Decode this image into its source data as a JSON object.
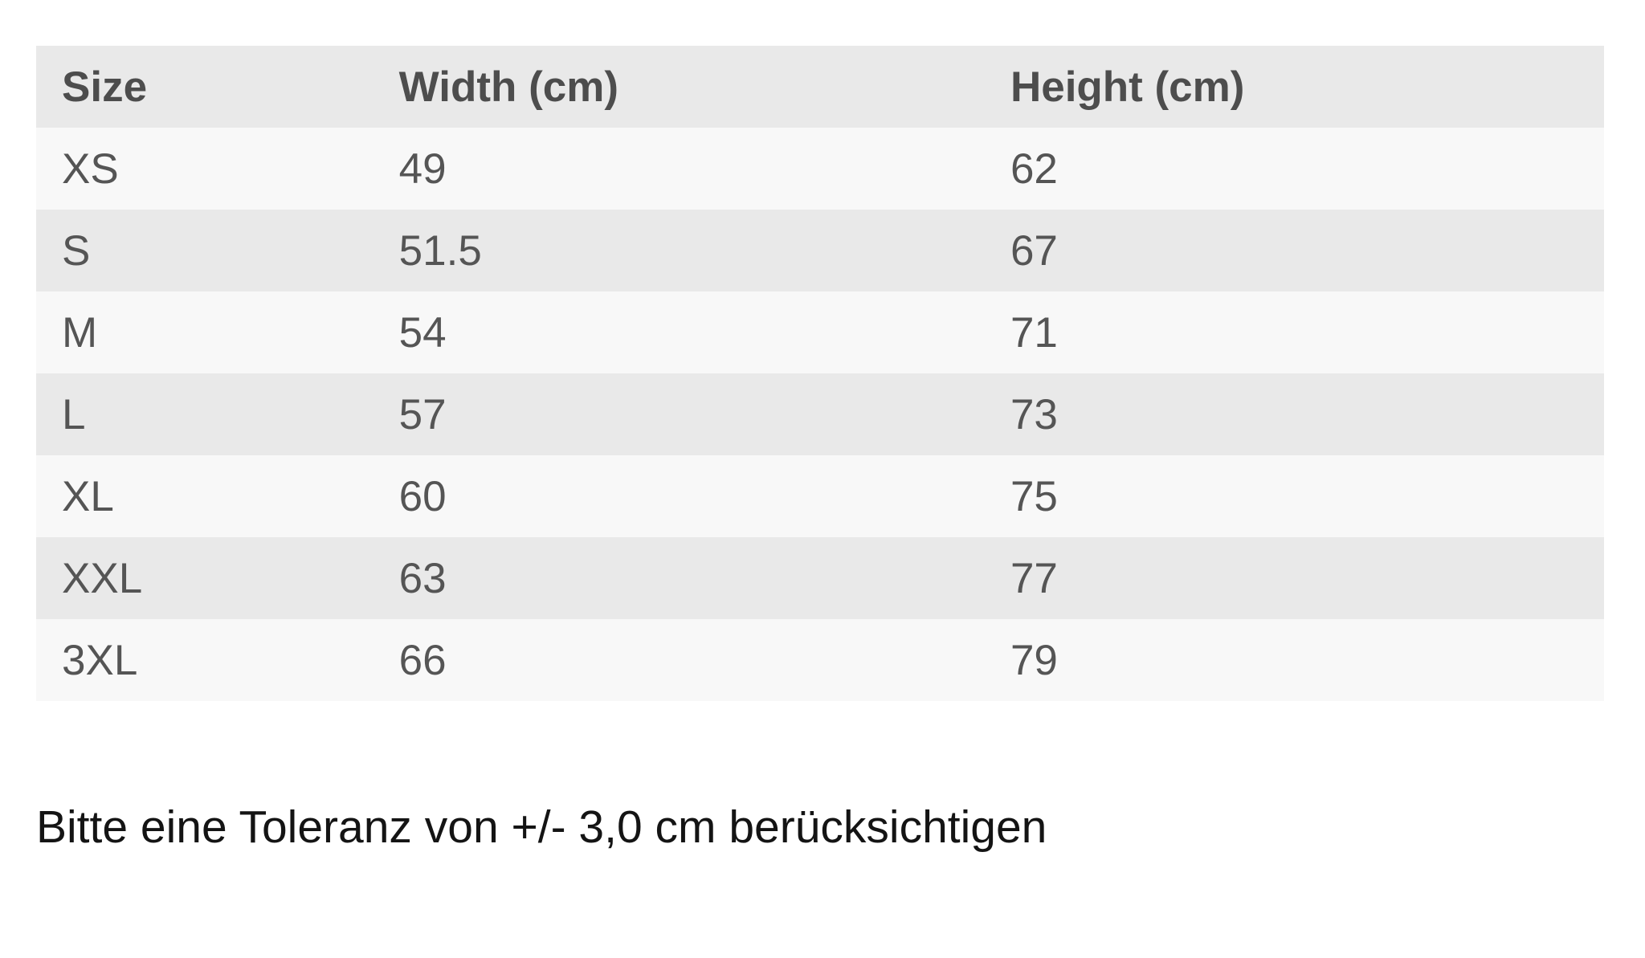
{
  "page": {
    "background_color": "#ffffff"
  },
  "size_chart": {
    "columns": [
      "Size",
      "Width (cm)",
      "Height (cm)"
    ],
    "rows": [
      {
        "size": "XS",
        "width_cm": "49",
        "height_cm": "62"
      },
      {
        "size": "S",
        "width_cm": "51.5",
        "height_cm": "67"
      },
      {
        "size": "M",
        "width_cm": "54",
        "height_cm": "71"
      },
      {
        "size": "L",
        "width_cm": "57",
        "height_cm": "73"
      },
      {
        "size": "XL",
        "width_cm": "60",
        "height_cm": "75"
      },
      {
        "size": "XXL",
        "width_cm": "63",
        "height_cm": "77"
      },
      {
        "size": "3XL",
        "width_cm": "66",
        "height_cm": "79"
      }
    ],
    "colors": {
      "header_bg": "#e9e9e9",
      "row_shaded_bg": "#e9e9e9",
      "row_light_bg": "#f8f8f8",
      "header_text": "#4d4d4d",
      "cell_text": "#555555"
    }
  },
  "note": {
    "text": "Bitte eine Toleranz von +/- 3,0 cm berücksichtigen",
    "text_color": "#141414"
  }
}
